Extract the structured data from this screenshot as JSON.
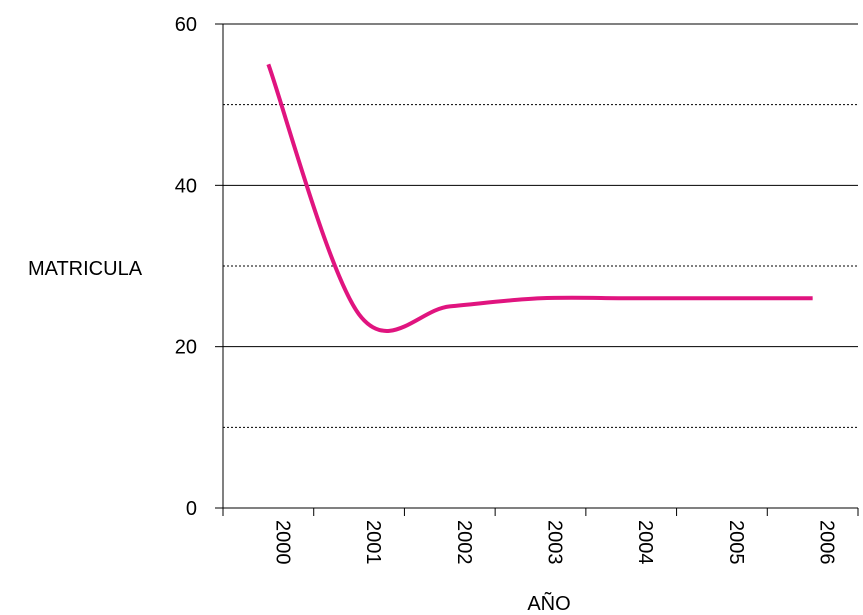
{
  "chart_data": {
    "type": "line",
    "xlabel": "AÑO",
    "ylabel": "MATRICULA",
    "categories": [
      "2000",
      "2001",
      "2002",
      "2003",
      "2004",
      "2005",
      "2006"
    ],
    "series": [
      {
        "values": [
          55,
          24,
          25,
          26,
          26,
          26,
          26
        ],
        "color": "#e0147f"
      }
    ],
    "ylim": [
      0,
      60
    ],
    "y_ticks": [
      "0",
      "20",
      "40",
      "60"
    ],
    "major_gridlines": [
      20,
      40,
      60
    ],
    "minor_gridlines": [
      10,
      30,
      50
    ],
    "grid": true,
    "legend": "none"
  }
}
